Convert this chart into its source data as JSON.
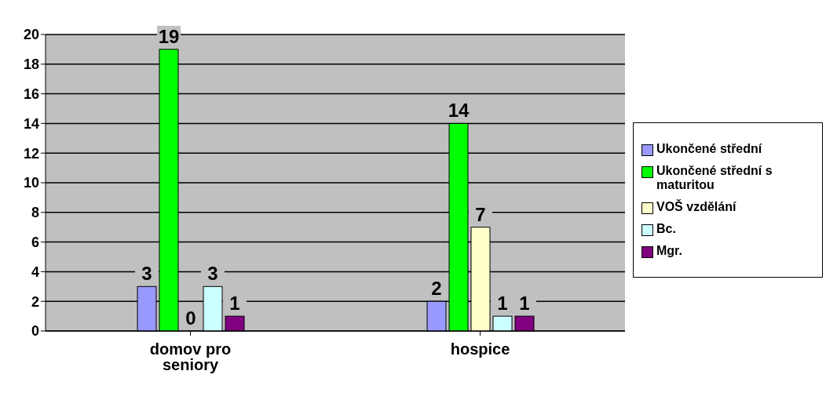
{
  "chart_data": {
    "type": "bar",
    "categories": [
      "domov pro seniory",
      "hospice"
    ],
    "series": [
      {
        "name": "Ukončené střední",
        "color": "#9999ff",
        "values": [
          3,
          2
        ]
      },
      {
        "name": "Ukončené střední s maturitou",
        "color": "#00ff00",
        "values": [
          19,
          14
        ]
      },
      {
        "name": "VOŠ vzdělání",
        "color": "#ffffcc",
        "values": [
          0,
          7
        ]
      },
      {
        "name": "Bc.",
        "color": "#ccffff",
        "values": [
          3,
          1
        ]
      },
      {
        "name": "Mgr.",
        "color": "#800080",
        "values": [
          1,
          1
        ]
      }
    ],
    "ylim": [
      0,
      20
    ],
    "yticks": [
      0,
      2,
      4,
      6,
      8,
      10,
      12,
      14,
      16,
      18,
      20
    ],
    "grid": "y",
    "legend": "right",
    "data_labels": true
  }
}
